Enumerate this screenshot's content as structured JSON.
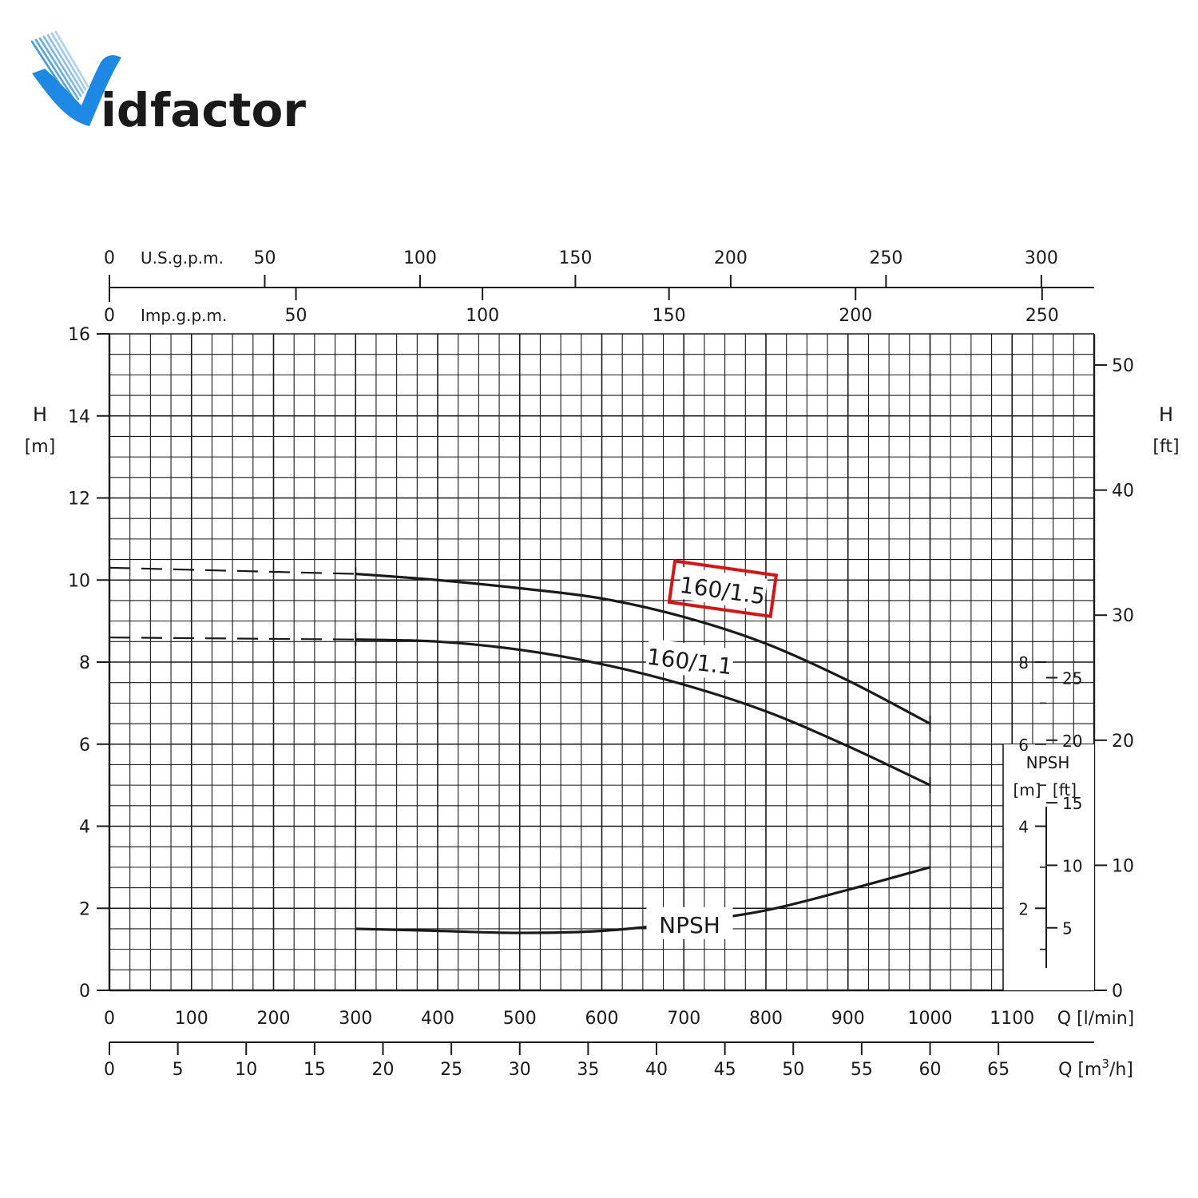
{
  "logo": {
    "text_part1": "id",
    "text_part2": "factor",
    "primary_color": "#1e88e5",
    "secondary_color": "#f5b820"
  },
  "chart_data": {
    "type": "line",
    "title": "",
    "x_axis": {
      "label": "Q [l/min]",
      "range": [
        0,
        1200
      ],
      "ticks": [
        0,
        100,
        200,
        300,
        400,
        500,
        600,
        700,
        800,
        900,
        1000,
        1100
      ]
    },
    "x_axis_m3h": {
      "label": "Q [m3/h]",
      "label_prefix": "Q [m",
      "label_sup": "3",
      "label_suffix": "/h]",
      "range": [
        0,
        72
      ],
      "ticks": [
        0,
        5,
        10,
        15,
        20,
        25,
        30,
        35,
        40,
        45,
        50,
        55,
        60,
        65
      ]
    },
    "x_axis_usgpm": {
      "label": "U.S.g.p.m.",
      "range": [
        0,
        317
      ],
      "ticks": [
        0,
        50,
        100,
        150,
        200,
        250,
        300
      ]
    },
    "x_axis_impgpm": {
      "label": "Imp.g.p.m.",
      "range": [
        0,
        264
      ],
      "ticks": [
        0,
        50,
        100,
        150,
        200,
        250
      ]
    },
    "y_axis_left": {
      "label_line1": "H",
      "label_line2": "[m]",
      "range": [
        0,
        16
      ],
      "ticks": [
        0,
        2,
        4,
        6,
        8,
        10,
        12,
        14,
        16
      ]
    },
    "y_axis_right": {
      "label_line1": "H",
      "label_line2": "[ft]",
      "range": [
        0,
        52.5
      ],
      "ticks": [
        0,
        10,
        20,
        30,
        40,
        50
      ]
    },
    "npsh_axis": {
      "title": "NPSH",
      "unit_m": "[m]",
      "unit_ft": "[ft]",
      "ticks_m": [
        2,
        4,
        6,
        8
      ],
      "ticks_ft": [
        5,
        10,
        15,
        20,
        25
      ]
    },
    "grid": true,
    "series": [
      {
        "name": "160/1.5",
        "highlighted": true,
        "highlight_color": "#e01010",
        "dashed_extension": {
          "x": [
            0,
            300
          ],
          "y": [
            10.3,
            10.15
          ]
        },
        "x": [
          300,
          400,
          500,
          600,
          700,
          800,
          900,
          1000
        ],
        "y": [
          10.15,
          10.0,
          9.8,
          9.55,
          9.1,
          8.45,
          7.55,
          6.5
        ]
      },
      {
        "name": "160/1.1",
        "highlighted": false,
        "dashed_extension": {
          "x": [
            0,
            300
          ],
          "y": [
            8.6,
            8.55
          ]
        },
        "x": [
          300,
          400,
          500,
          600,
          700,
          800,
          900,
          1000
        ],
        "y": [
          8.55,
          8.5,
          8.3,
          7.95,
          7.45,
          6.8,
          5.95,
          5.0
        ]
      },
      {
        "name": "NPSH",
        "highlighted": false,
        "x": [
          300,
          400,
          500,
          600,
          700,
          800,
          900,
          1000
        ],
        "y": [
          1.5,
          1.45,
          1.4,
          1.45,
          1.65,
          1.95,
          2.45,
          3.0
        ]
      }
    ]
  }
}
